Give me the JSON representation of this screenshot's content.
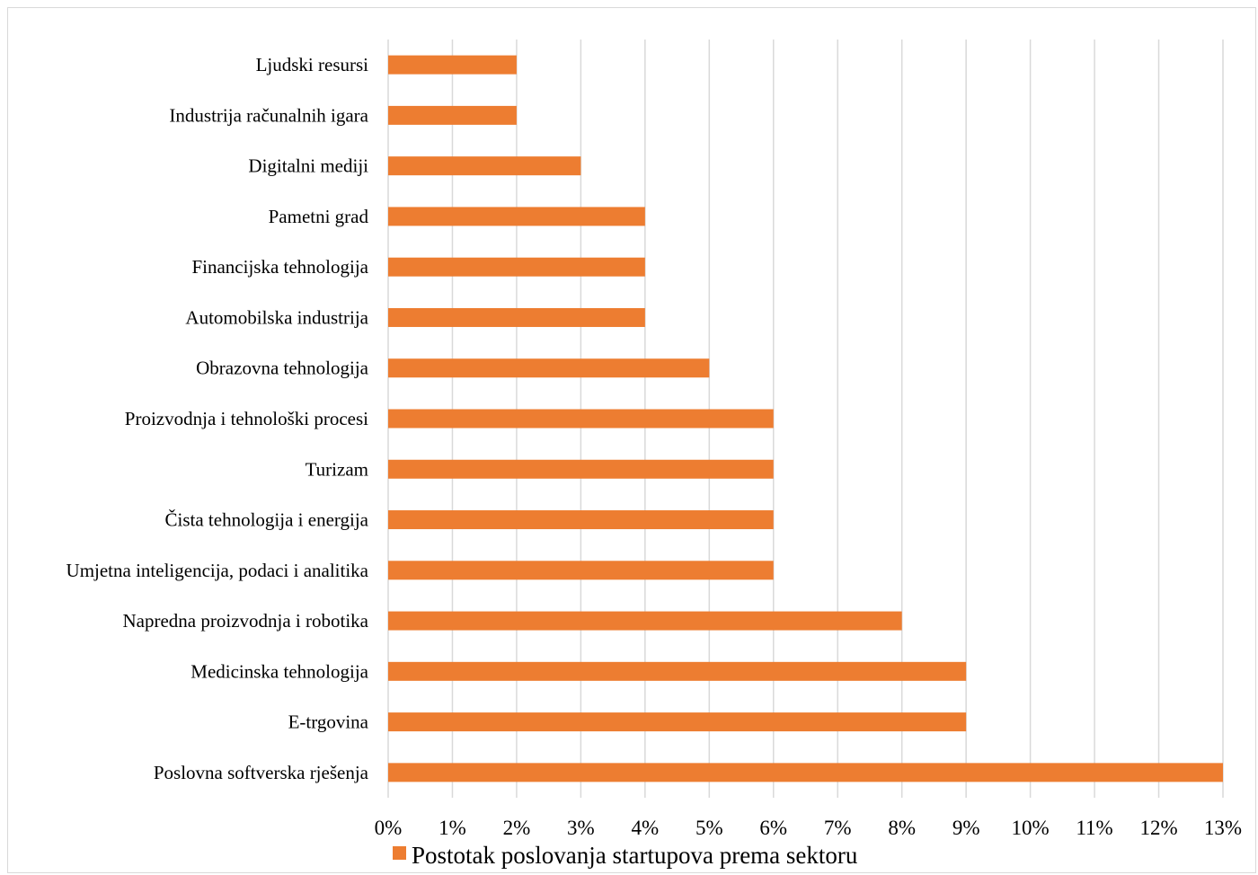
{
  "chart_data": {
    "type": "bar",
    "orientation": "horizontal",
    "categories": [
      "Ljudski resursi",
      "Industrija računalnih igara",
      "Digitalni mediji",
      "Pametni grad",
      "Financijska tehnologija",
      "Automobilska industrija",
      "Obrazovna tehnologija",
      "Proizvodnja i tehnološki procesi",
      "Turizam",
      "Čista tehnologija i energija",
      "Umjetna inteligencija, podaci i analitika",
      "Napredna proizvodnja i robotika",
      "Medicinska tehnologija",
      "E-trgovina",
      "Poslovna softverska rješenja"
    ],
    "series": [
      {
        "name": "Postotak poslovanja startupova prema sektoru",
        "values": [
          2,
          2,
          3,
          4,
          4,
          4,
          5,
          6,
          6,
          6,
          6,
          8,
          9,
          9,
          13
        ],
        "color": "#ed7d31"
      }
    ],
    "xlim": [
      0,
      13
    ],
    "xticks": [
      "0%",
      "1%",
      "2%",
      "3%",
      "4%",
      "5%",
      "6%",
      "7%",
      "8%",
      "9%",
      "10%",
      "11%",
      "12%",
      "13%"
    ],
    "grid": true,
    "gridColor": "#d9d9d9",
    "legend": "bottom"
  }
}
